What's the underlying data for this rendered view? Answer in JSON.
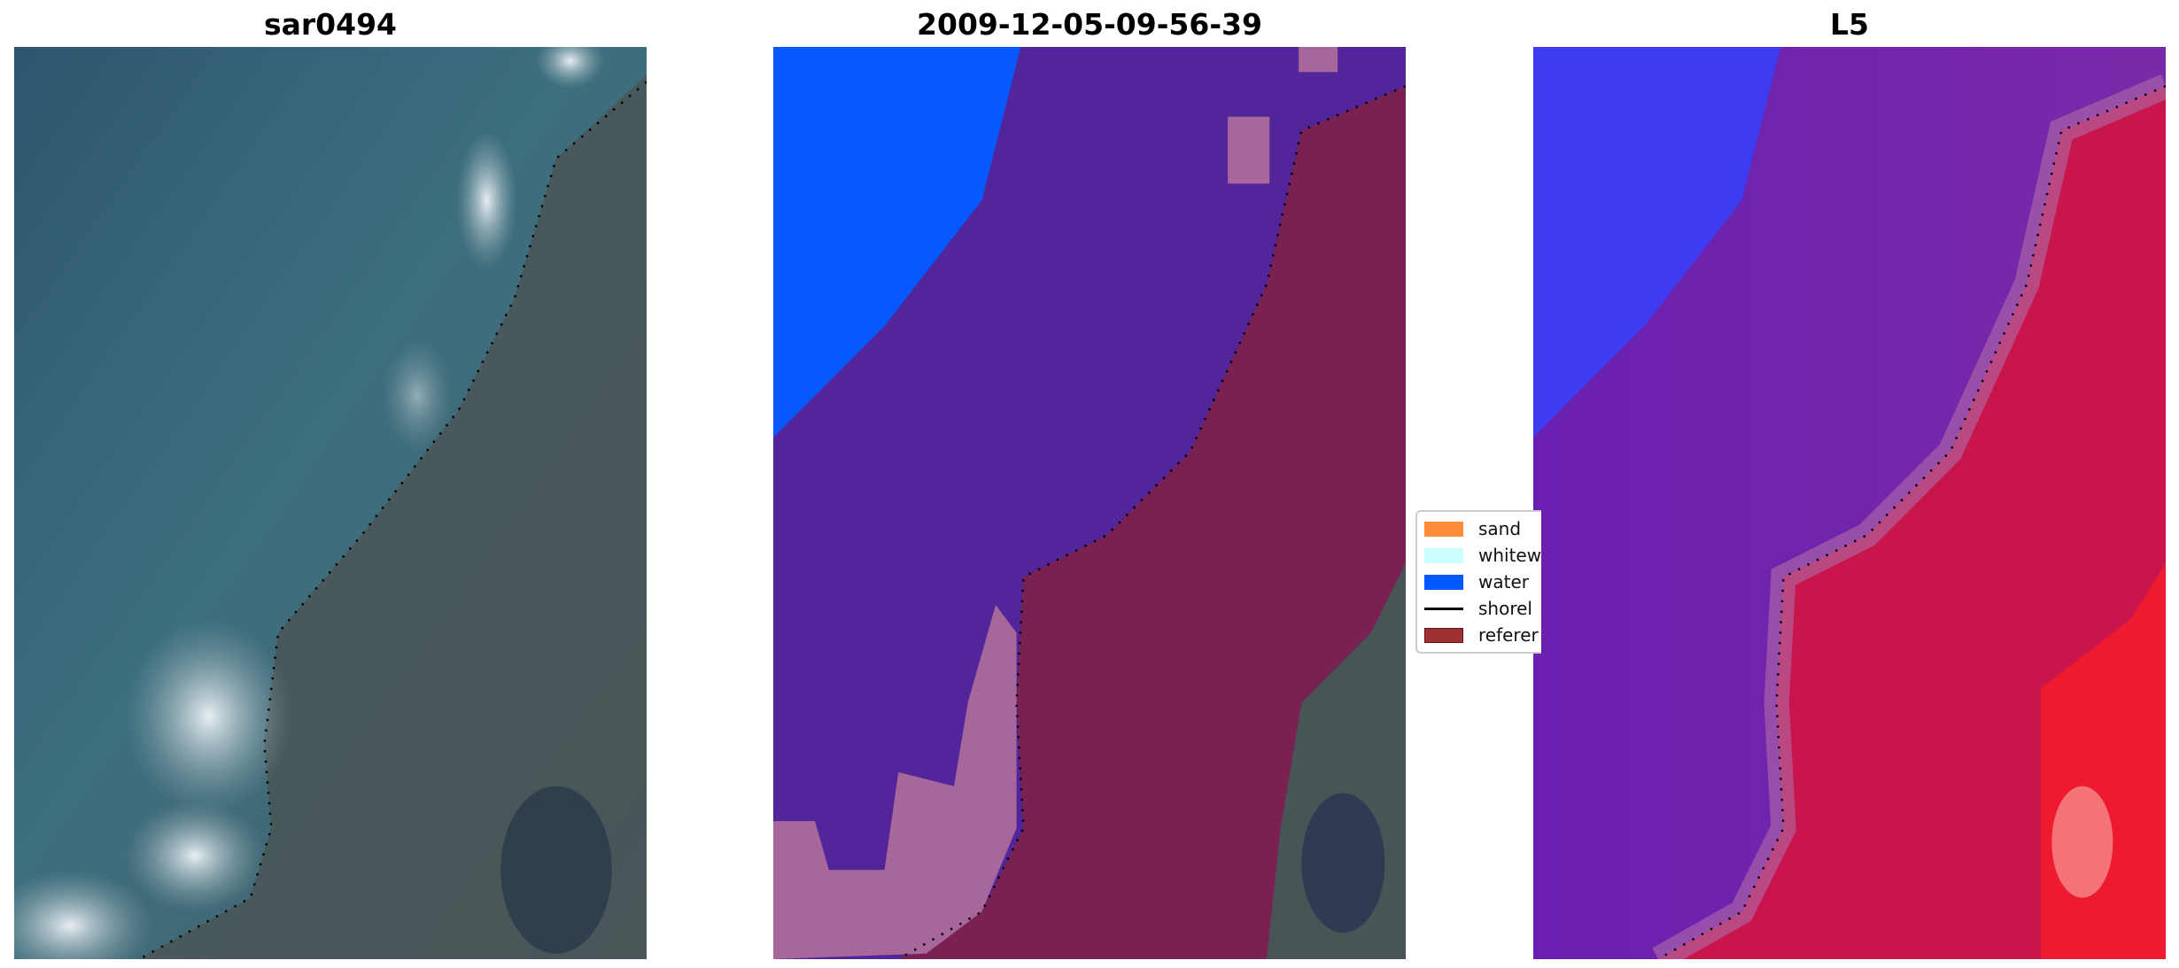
{
  "panels": [
    {
      "title": "sar0494"
    },
    {
      "title": "2009-12-05-09-56-39"
    },
    {
      "title": "L5"
    }
  ],
  "legend": {
    "items": [
      {
        "label": "sand",
        "color": "#ff8c3a",
        "kind": "patch"
      },
      {
        "label": "whitew",
        "color": "#ccffff",
        "kind": "patch"
      },
      {
        "label": "water",
        "color": "#0059ff",
        "kind": "patch"
      },
      {
        "label": "shorel",
        "color": "#000000",
        "kind": "line"
      },
      {
        "label": "referer",
        "color": "#9e3034",
        "kind": "patch"
      }
    ]
  }
}
